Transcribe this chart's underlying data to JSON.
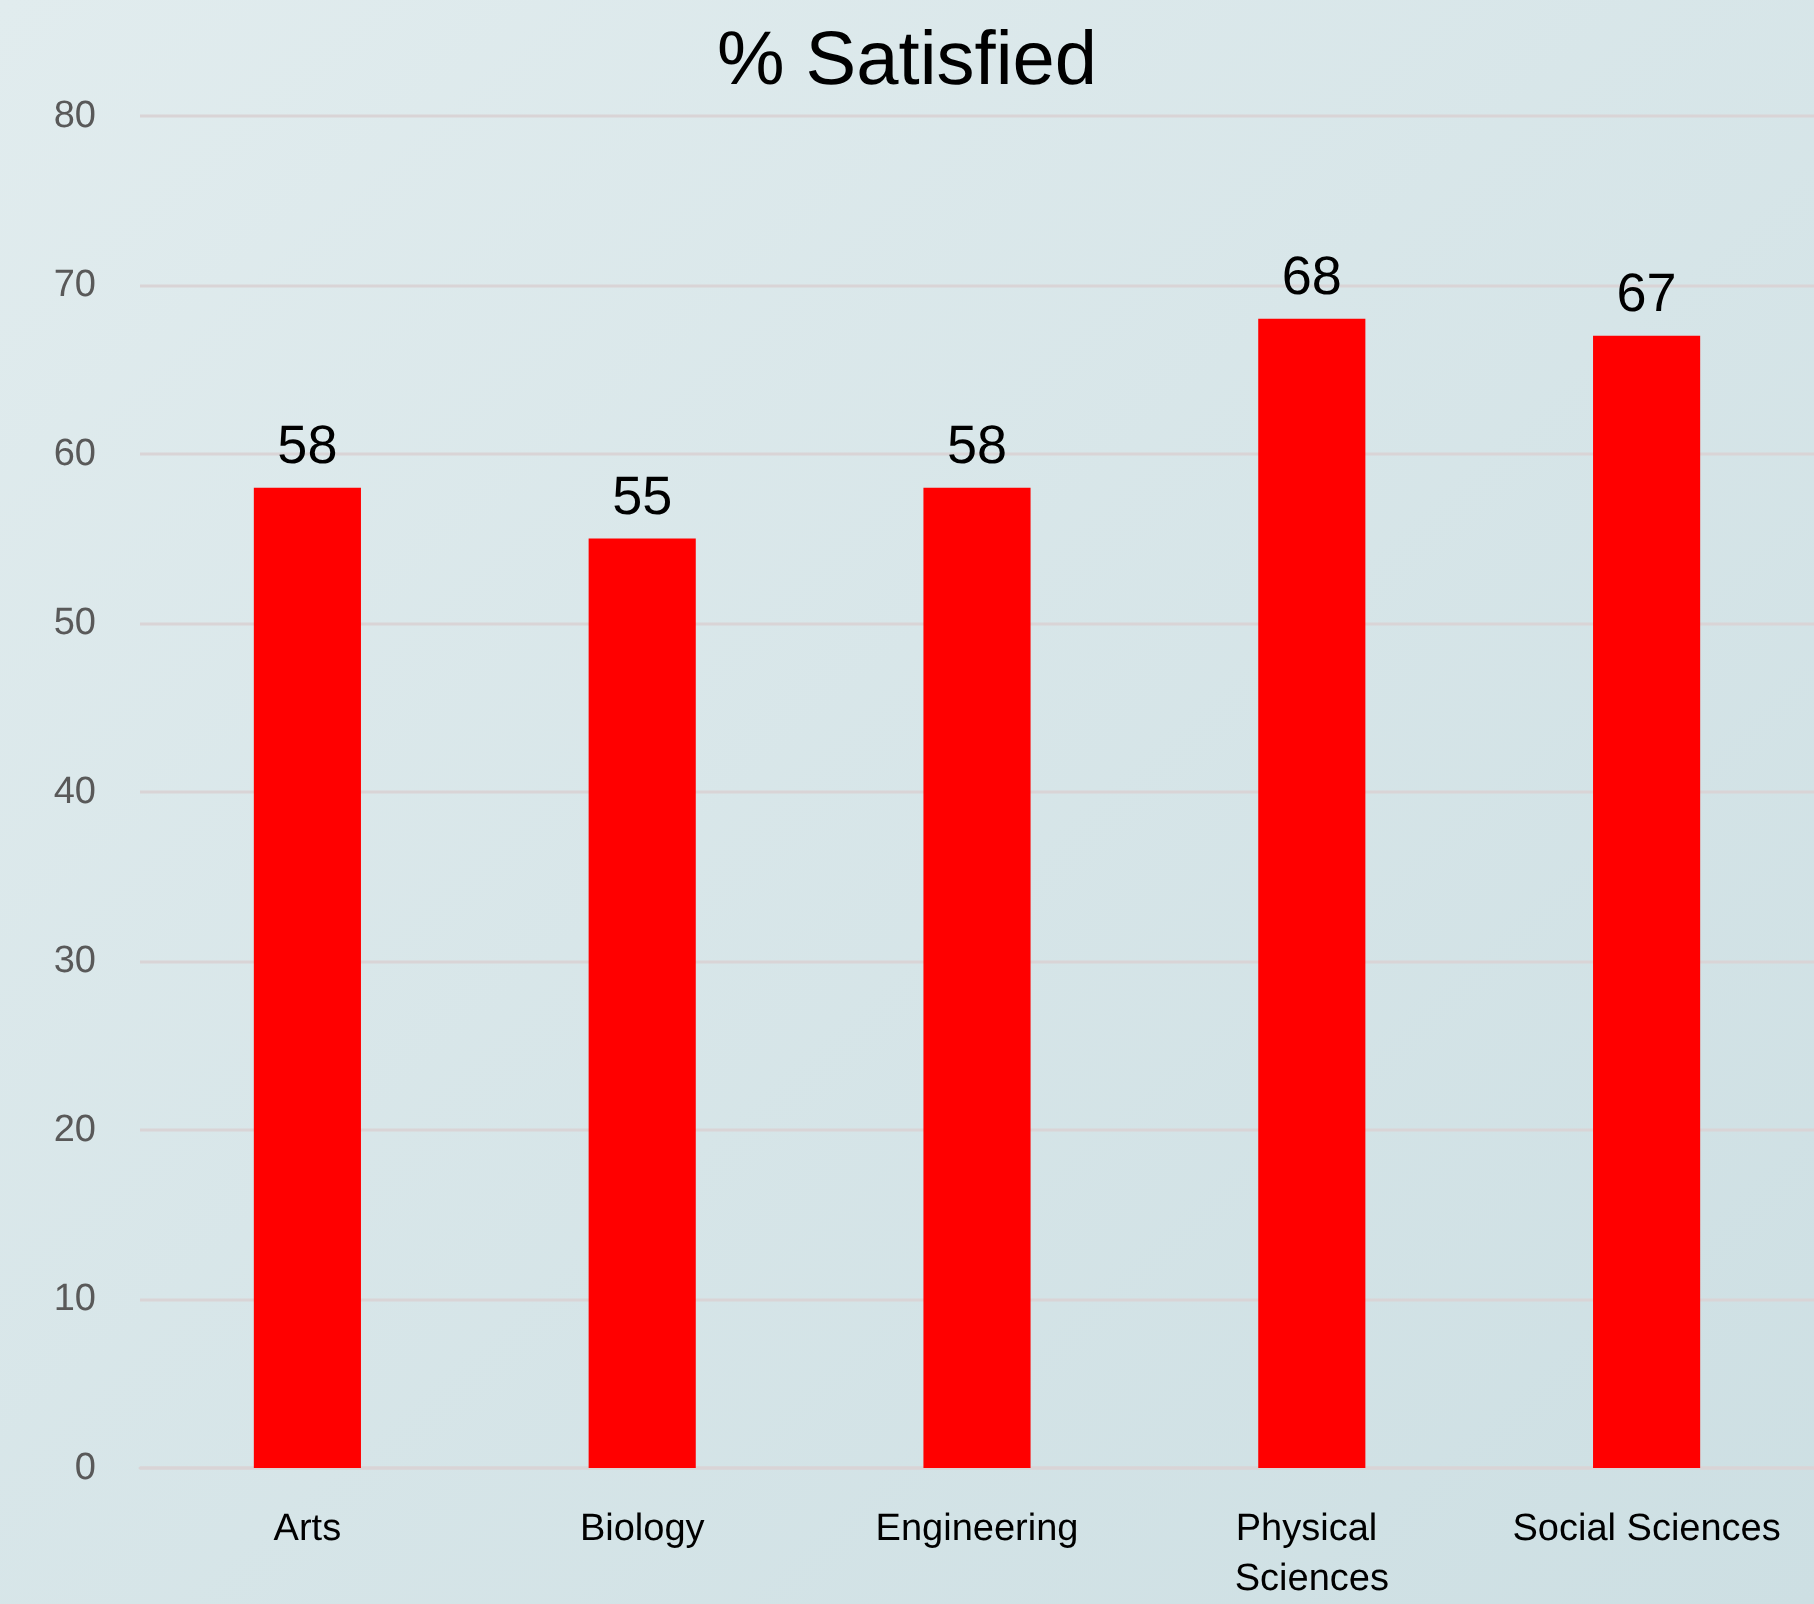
{
  "chart_data": {
    "type": "bar",
    "title": "% Satisfied",
    "categories": [
      "Arts",
      "Biology",
      "Engineering",
      "Physical Sciences",
      "Social Sciences"
    ],
    "values": [
      58,
      55,
      58,
      68,
      67
    ],
    "color": "#ff0000",
    "ylim": [
      0,
      80
    ],
    "yticks": [
      0,
      10,
      20,
      30,
      40,
      50,
      60,
      70,
      80
    ],
    "grid": "y",
    "data_labels": true
  }
}
